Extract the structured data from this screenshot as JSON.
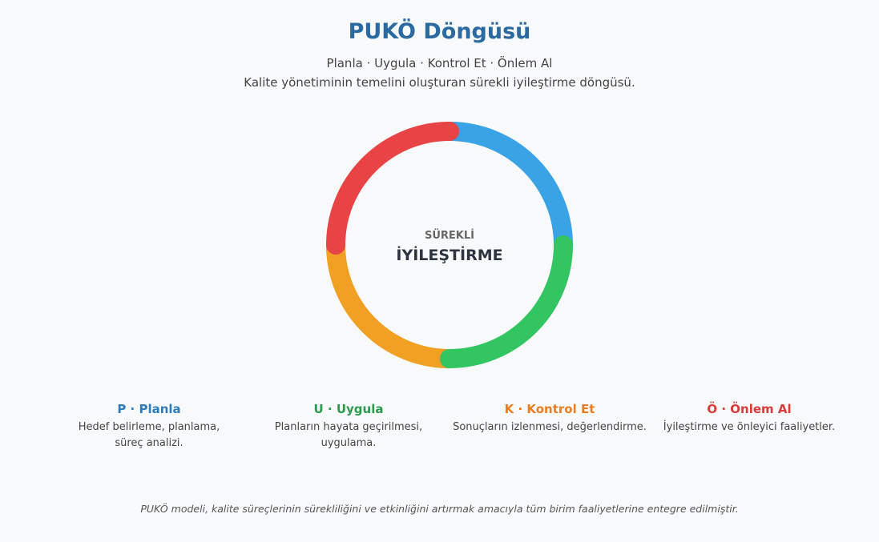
{
  "header": {
    "title": "PUKÖ Döngüsü",
    "subtitle": "Planla · Uygula · Kontrol Et · Önlem Al",
    "description": "Kalite yönetiminin temelini oluşturan sürekli iyileştirme döngüsü."
  },
  "center": {
    "top": "SÜREKLİ",
    "main": "İYİLEŞTİRME"
  },
  "steps": [
    {
      "title": "P · Planla",
      "description": "Hedef belirleme, planlama, süreç analizi."
    },
    {
      "title": "U · Uygula",
      "description": "Planların hayata geçirilmesi, uygulama."
    },
    {
      "title": "K · Kontrol Et",
      "description": "Sonuçların izlenmesi, değerlendirme."
    },
    {
      "title": "Ö · Önlem Al",
      "description": "İyileştirme ve önleyici faaliyetler."
    }
  ],
  "footer": "PUKÖ modeli, kalite süreçlerinin sürekliliğini ve etkinliğini artırmak amacıyla tüm birim faaliyetlerine entegre edilmiştir."
}
